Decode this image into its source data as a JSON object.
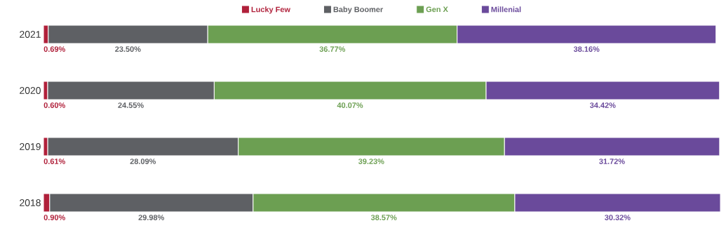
{
  "chart_data": {
    "type": "bar",
    "orientation": "horizontal",
    "stacked": true,
    "legend": "top",
    "categories": [
      "2021",
      "2020",
      "2019",
      "2018"
    ],
    "series": [
      {
        "name": "Lucky Few",
        "color": "#b0203a",
        "values": [
          0.69,
          0.6,
          0.61,
          0.9
        ],
        "value_labels": [
          "0.69%",
          "0.60%",
          "0.61%",
          "0.90%"
        ]
      },
      {
        "name": "Baby Boomer",
        "color": "#5e6064",
        "values": [
          23.5,
          24.55,
          28.09,
          29.98
        ],
        "value_labels": [
          "23.50%",
          "24.55%",
          "28.09%",
          "29.98%"
        ]
      },
      {
        "name": "Gen X",
        "color": "#6c9f52",
        "values": [
          36.77,
          40.07,
          39.23,
          38.57
        ],
        "value_labels": [
          "36.77%",
          "40.07%",
          "39.23%",
          "38.57%"
        ]
      },
      {
        "name": "Millenial",
        "color": "#6a4a9b",
        "values": [
          38.16,
          34.42,
          31.72,
          30.32
        ],
        "value_labels": [
          "38.16%",
          "34.42%",
          "31.72%",
          "30.32%"
        ]
      }
    ]
  }
}
